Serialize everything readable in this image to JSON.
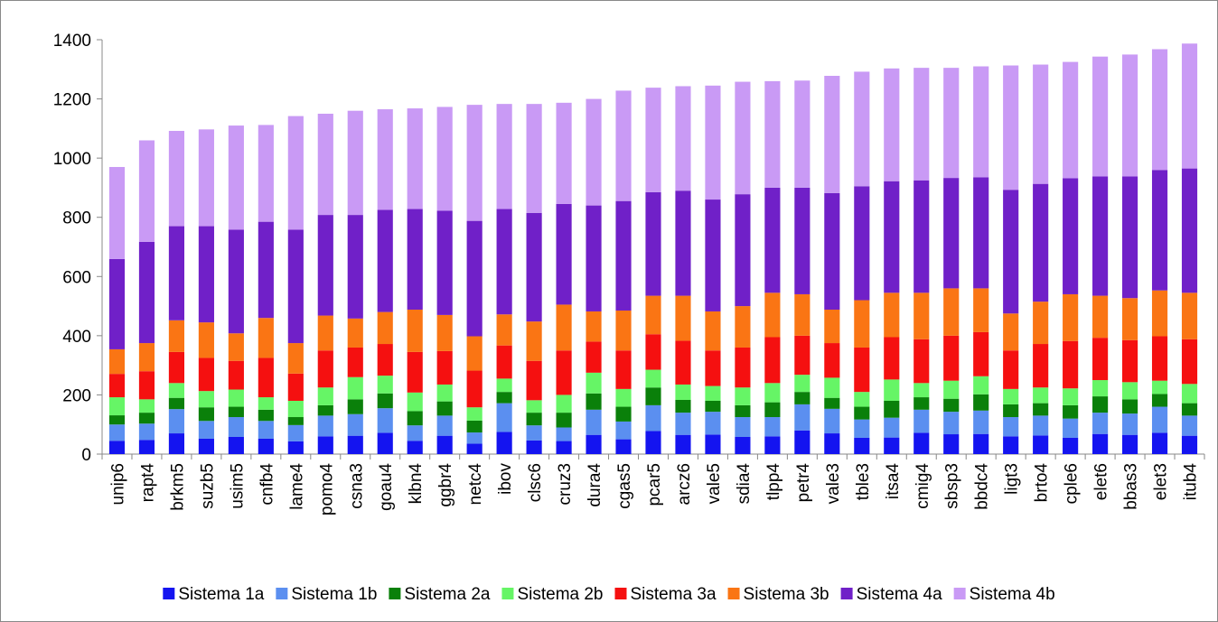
{
  "chart_data": {
    "type": "stacked_bar",
    "categories": [
      "unip6",
      "rapt4",
      "brkm5",
      "suzb5",
      "usim5",
      "cnfb4",
      "lame4",
      "pomo4",
      "csna3",
      "goau4",
      "klbn4",
      "ggbr4",
      "netc4",
      "ibov",
      "clsc6",
      "cruz3",
      "dura4",
      "cgas5",
      "pcar5",
      "arcz6",
      "vale5",
      "sdia4",
      "tlpp4",
      "petr4",
      "vale3",
      "tble3",
      "itsa4",
      "cmig4",
      "sbsp3",
      "bbdc4",
      "ligt3",
      "brto4",
      "cple6",
      "elet6",
      "bbas3",
      "elet3",
      "itub4"
    ],
    "series": [
      {
        "name": "Sistema 1a",
        "color": "#1414f0",
        "values": [
          45,
          48,
          70,
          52,
          58,
          52,
          43,
          60,
          62,
          72,
          45,
          62,
          35,
          75,
          46,
          44,
          65,
          50,
          78,
          65,
          66,
          58,
          60,
          80,
          70,
          55,
          56,
          72,
          67,
          68,
          60,
          63,
          55,
          68,
          65,
          72,
          62
        ]
      },
      {
        "name": "Sistema 1b",
        "color": "#5b8ff0",
        "values": [
          55,
          55,
          82,
          60,
          67,
          60,
          55,
          70,
          73,
          83,
          52,
          68,
          38,
          97,
          51,
          46,
          85,
          60,
          87,
          75,
          77,
          67,
          65,
          88,
          83,
          62,
          67,
          78,
          76,
          79,
          65,
          67,
          65,
          72,
          72,
          88,
          68
        ]
      },
      {
        "name": "Sistema 2a",
        "color": "#0a800a",
        "values": [
          31,
          37,
          38,
          46,
          35,
          38,
          27,
          35,
          50,
          50,
          48,
          48,
          40,
          38,
          43,
          50,
          55,
          50,
          60,
          43,
          37,
          40,
          50,
          42,
          37,
          43,
          57,
          42,
          44,
          55,
          43,
          42,
          45,
          55,
          48,
          43,
          42
        ]
      },
      {
        "name": "Sistema 2b",
        "color": "#66f566",
        "values": [
          61,
          45,
          50,
          55,
          58,
          42,
          55,
          60,
          75,
          60,
          63,
          57,
          45,
          45,
          42,
          60,
          70,
          60,
          60,
          52,
          50,
          60,
          65,
          58,
          68,
          50,
          72,
          48,
          61,
          61,
          52,
          53,
          57,
          55,
          58,
          45,
          65
        ]
      },
      {
        "name": "Sistema 3a",
        "color": "#f51010",
        "values": [
          79,
          95,
          105,
          112,
          97,
          133,
          92,
          125,
          100,
          107,
          137,
          113,
          124,
          112,
          133,
          150,
          105,
          130,
          120,
          148,
          120,
          135,
          155,
          132,
          117,
          150,
          143,
          148,
          152,
          149,
          130,
          147,
          160,
          143,
          142,
          150,
          151
        ]
      },
      {
        "name": "Sistema 3b",
        "color": "#fa7514",
        "values": [
          83,
          95,
          107,
          120,
          93,
          135,
          103,
          118,
          98,
          108,
          143,
          122,
          116,
          105,
          133,
          155,
          102,
          135,
          130,
          152,
          132,
          140,
          150,
          140,
          113,
          160,
          150,
          157,
          160,
          148,
          125,
          143,
          158,
          142,
          142,
          155,
          157
        ]
      },
      {
        "name": "Sistema 4a",
        "color": "#7020c8",
        "values": [
          305,
          342,
          318,
          325,
          350,
          325,
          383,
          340,
          350,
          345,
          340,
          352,
          390,
          356,
          367,
          340,
          358,
          370,
          350,
          355,
          378,
          378,
          355,
          360,
          394,
          385,
          377,
          380,
          373,
          375,
          418,
          398,
          392,
          403,
          411,
          407,
          420
        ]
      },
      {
        "name": "Sistema 4b",
        "color": "#c99af5",
        "values": [
          311,
          343,
          322,
          327,
          352,
          327,
          384,
          342,
          352,
          340,
          340,
          351,
          392,
          355,
          368,
          342,
          360,
          373,
          353,
          353,
          385,
          380,
          360,
          362,
          396,
          387,
          381,
          380,
          372,
          375,
          420,
          403,
          393,
          405,
          412,
          408,
          422
        ]
      }
    ],
    "ylim": [
      0,
      1400
    ],
    "yticks": [
      0,
      200,
      400,
      600,
      800,
      1000,
      1200,
      1400
    ],
    "grid": false,
    "legend": "bottom"
  }
}
